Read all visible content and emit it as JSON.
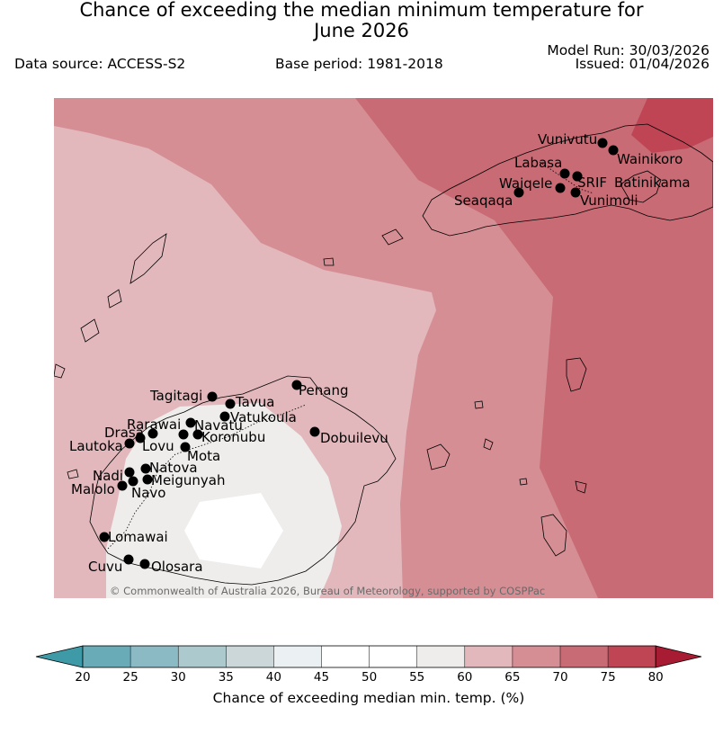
{
  "header": {
    "title_line1": "Chance of exceeding the median minimum temperature for",
    "title_line2": "June 2026",
    "data_source": "Data source: ACCESS-S2",
    "base_period": "Base period: 1981-2018",
    "model_run": "Model Run: 30/03/2026",
    "issued": "Issued: 01/04/2026"
  },
  "map": {
    "copyright": "© Commonwealth of Australia 2026, Bureau of Meteorology, supported by COSPPac",
    "places": [
      {
        "name": "Vunivutu"
      },
      {
        "name": "Wainikoro"
      },
      {
        "name": "Labasa"
      },
      {
        "name": "Waiqele"
      },
      {
        "name": "SRIF"
      },
      {
        "name": "Batinikama"
      },
      {
        "name": "Seaqaqa"
      },
      {
        "name": "Vunimoli"
      },
      {
        "name": "Penang"
      },
      {
        "name": "Tagitagi"
      },
      {
        "name": "Tavua"
      },
      {
        "name": "Vatukoula"
      },
      {
        "name": "Rarawai"
      },
      {
        "name": "Navatu"
      },
      {
        "name": "Drasa"
      },
      {
        "name": "Koronubu"
      },
      {
        "name": "Lautoka"
      },
      {
        "name": "Lovu"
      },
      {
        "name": "Dobuilevu"
      },
      {
        "name": "Mota"
      },
      {
        "name": "Natova"
      },
      {
        "name": "Nadi"
      },
      {
        "name": "Meigunyah"
      },
      {
        "name": "Malolo"
      },
      {
        "name": "Navo"
      },
      {
        "name": "Lomawai"
      },
      {
        "name": "Cuvu"
      },
      {
        "name": "Olosara"
      }
    ]
  },
  "colorbar": {
    "label": "Chance of exceeding median min. temp. (%)",
    "ticks": [
      "20",
      "25",
      "30",
      "35",
      "40",
      "45",
      "50",
      "55",
      "60",
      "65",
      "70",
      "75",
      "80"
    ],
    "colors": {
      "under": "#3f9aa7",
      "bins": [
        "#6aabb8",
        "#8bbac4",
        "#acc9cd",
        "#cbd7d8",
        "#ebf0f2",
        "#ffffff",
        "#ffffff",
        "#eeedeb",
        "#e2b8bc",
        "#d58e94",
        "#c86b75",
        "#bf4555"
      ],
      "over": "#a71b33"
    }
  }
}
